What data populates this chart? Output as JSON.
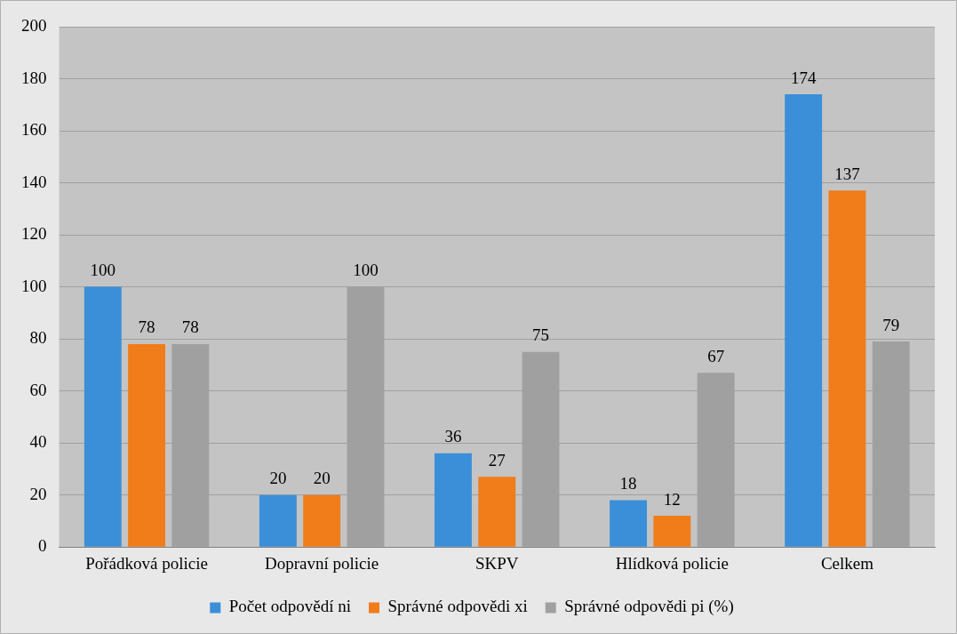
{
  "chart_data": {
    "type": "bar",
    "categories": [
      "Pořádková policie",
      "Dopravní policie",
      "SKPV",
      "Hlídková policie",
      "Celkem"
    ],
    "series": [
      {
        "name": "Počet odpovědí ni",
        "color": "#3a8fd8",
        "values": [
          100,
          20,
          36,
          18,
          174
        ]
      },
      {
        "name": "Správné odpovědi xi",
        "color": "#f07c1a",
        "values": [
          78,
          20,
          27,
          12,
          137
        ]
      },
      {
        "name": "Správné odpovědi pi (%)",
        "color": "#a0a0a0",
        "values": [
          78,
          100,
          75,
          67,
          79
        ]
      }
    ],
    "ylim": [
      0,
      200
    ],
    "yticks": [
      0,
      20,
      40,
      60,
      80,
      100,
      120,
      140,
      160,
      180,
      200
    ],
    "grid": "y",
    "legend": "bottom",
    "data_labels": true
  }
}
